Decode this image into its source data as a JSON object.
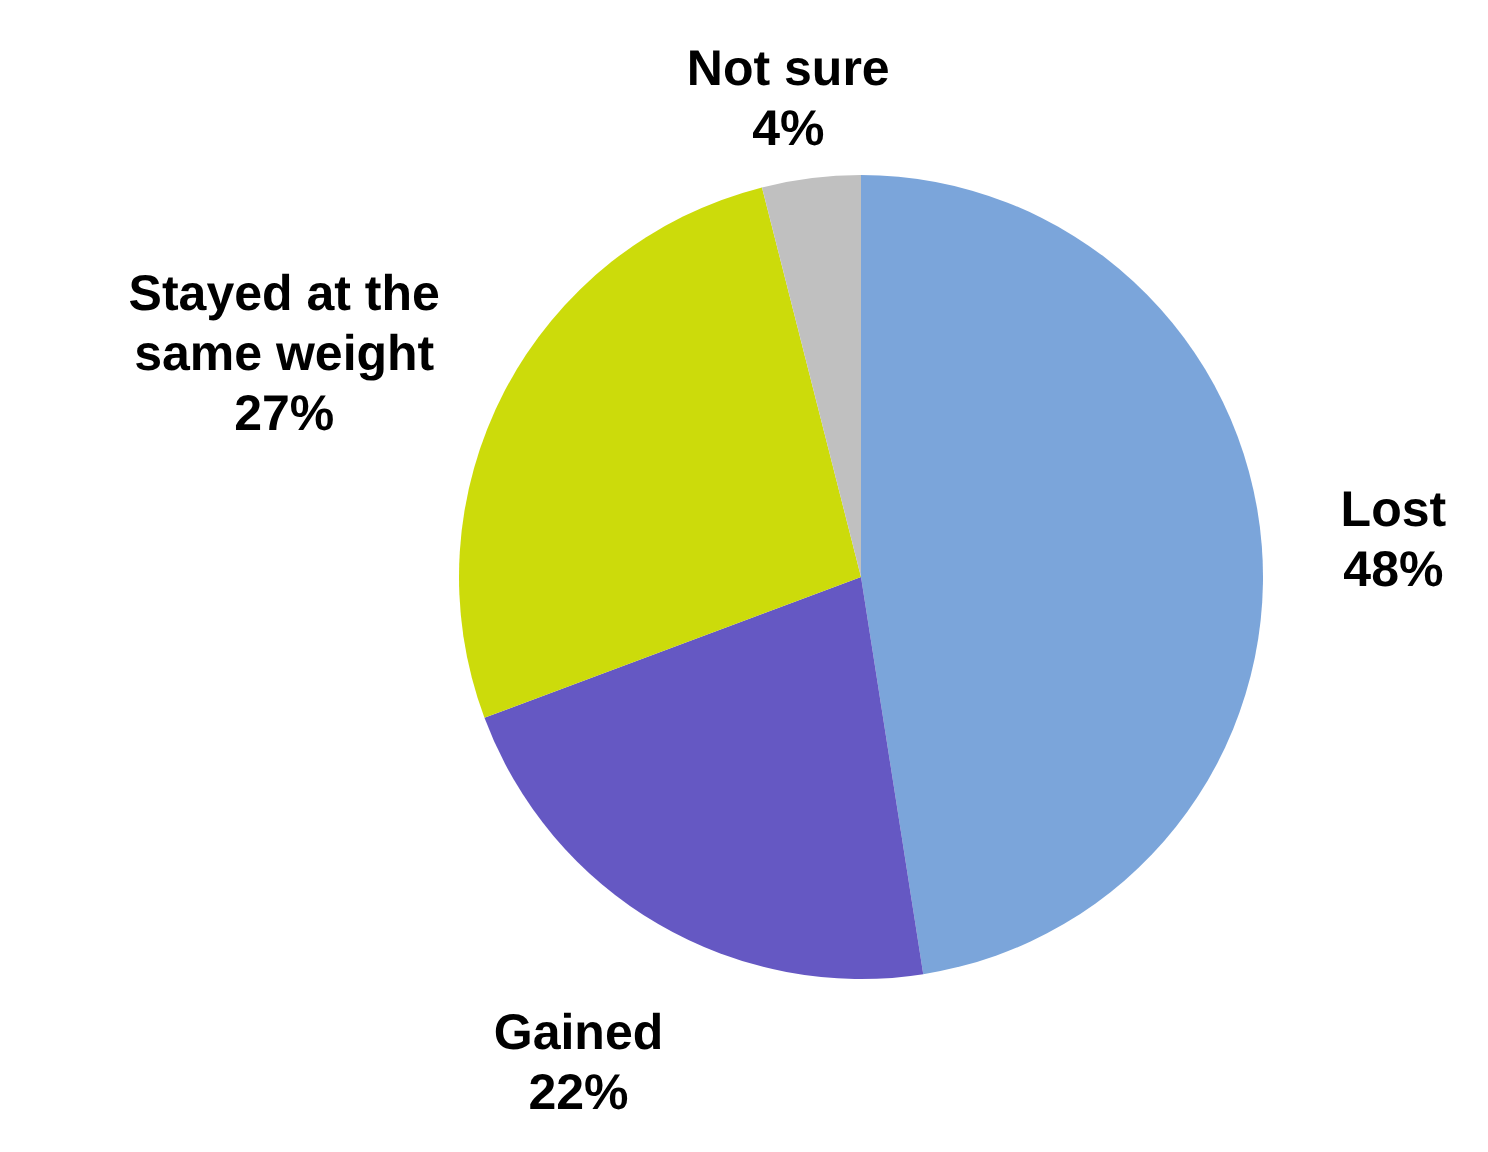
{
  "chart_data": {
    "type": "pie",
    "categories": [
      "Lost",
      "Gained",
      "Stayed at the same weight",
      "Not sure"
    ],
    "values": [
      48,
      22,
      27,
      4
    ],
    "colors": [
      "#7ba5da",
      "#6558c3",
      "#ccdb0b",
      "#c0c0c0"
    ],
    "value_labels": [
      "48%",
      "22%",
      "27%",
      "4%"
    ],
    "legend": false
  }
}
